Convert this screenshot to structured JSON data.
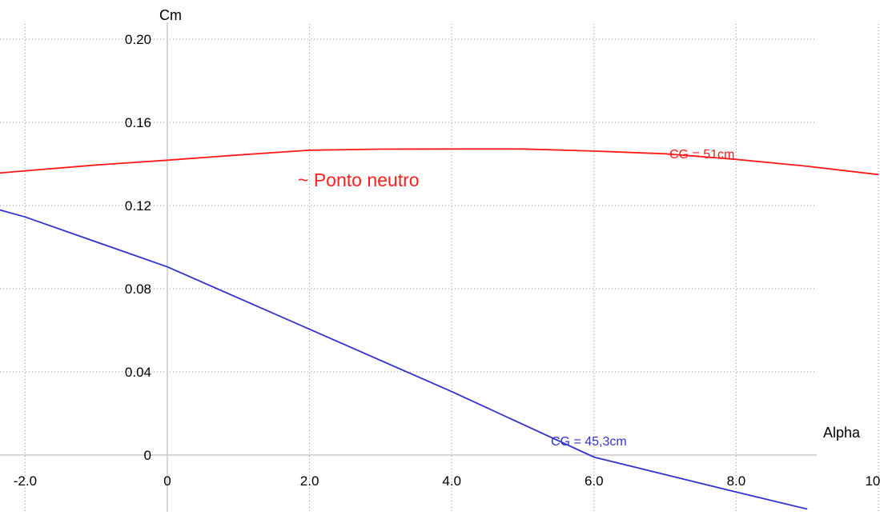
{
  "chart_data": {
    "type": "line",
    "xlabel": "Alpha",
    "ylabel": "Cm",
    "xlim": [
      -2.9,
      10.2
    ],
    "ylim": [
      -0.022,
      0.206
    ],
    "x_ticks": [
      -2.0,
      0,
      2.0,
      4.0,
      6.0,
      8.0,
      10.0
    ],
    "x_tick_labels": [
      "-2.0",
      "0",
      "2.0",
      "4.0",
      "6.0",
      "8.0",
      "10.0"
    ],
    "y_ticks": [
      0.2,
      0.16,
      0.12,
      0.08,
      0.04,
      0
    ],
    "y_tick_labels": [
      "0.20",
      "0.16",
      "0.12",
      "0.08",
      "0.04",
      "0"
    ],
    "grid": true,
    "annotations": [
      {
        "text": "~ Ponto neutro",
        "color": "#ff2020"
      }
    ],
    "series": [
      {
        "name": "CG = 51cm",
        "color": "#ff1a1a",
        "x": [
          -3.0,
          -2.0,
          -1.0,
          0.0,
          1.0,
          2.0,
          3.0,
          4.0,
          5.0,
          6.0,
          7.0,
          8.0,
          9.0,
          10.0
        ],
        "y": [
          0.1338,
          0.1367,
          0.1395,
          0.1418,
          0.1443,
          0.1466,
          0.1471,
          0.1472,
          0.1472,
          0.1462,
          0.1449,
          0.1422,
          0.1389,
          0.1349
        ]
      },
      {
        "name": "CG = 45,3cm",
        "color": "#3333cc",
        "x": [
          -3.0,
          -2.0,
          0.0,
          2.0,
          4.0,
          6.0,
          8.0,
          9.0
        ],
        "y": [
          0.124,
          0.1145,
          0.0905,
          0.0605,
          0.0305,
          -0.001,
          -0.0178,
          -0.026
        ]
      }
    ]
  }
}
